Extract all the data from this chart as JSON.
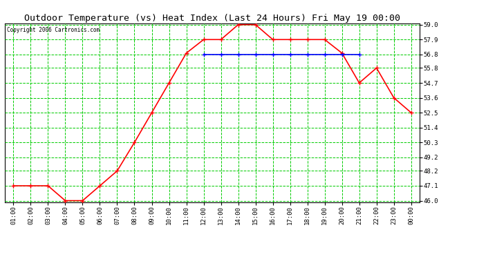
{
  "title": "Outdoor Temperature (vs) Heat Index (Last 24 Hours) Fri May 19 00:00",
  "copyright": "Copyright 2006 Cartronics.com",
  "x_labels": [
    "01:00",
    "02:00",
    "03:00",
    "04:00",
    "05:00",
    "06:00",
    "07:00",
    "08:00",
    "09:00",
    "10:00",
    "11:00",
    "12:00",
    "13:00",
    "14:00",
    "15:00",
    "16:00",
    "17:00",
    "18:00",
    "19:00",
    "20:00",
    "21:00",
    "22:00",
    "23:00",
    "00:00"
  ],
  "temp_values": [
    47.1,
    47.1,
    47.1,
    46.0,
    46.0,
    47.1,
    48.2,
    50.3,
    52.5,
    54.7,
    56.9,
    57.9,
    57.9,
    59.0,
    59.0,
    57.9,
    57.9,
    57.9,
    57.9,
    56.9,
    54.7,
    55.8,
    53.6,
    52.5
  ],
  "heat_values": [
    null,
    null,
    null,
    null,
    null,
    null,
    null,
    null,
    null,
    null,
    null,
    56.8,
    56.8,
    56.8,
    56.8,
    56.8,
    56.8,
    56.8,
    56.8,
    56.8,
    56.8,
    null,
    null,
    null
  ],
  "temp_color": "#ff0000",
  "heat_color": "#0000ff",
  "bg_color": "#ffffff",
  "grid_color": "#00cc00",
  "title_color": "#000000",
  "copyright_color": "#000000",
  "ylim_min": 46.0,
  "ylim_max": 59.0,
  "ytick_values": [
    46.0,
    47.1,
    48.2,
    49.2,
    50.3,
    51.4,
    52.5,
    53.6,
    54.7,
    55.8,
    56.8,
    57.9,
    59.0
  ],
  "marker": "+",
  "marker_size": 5,
  "linewidth": 1.2,
  "title_fontsize": 9.5,
  "tick_fontsize": 6.5,
  "copyright_fontsize": 5.5
}
